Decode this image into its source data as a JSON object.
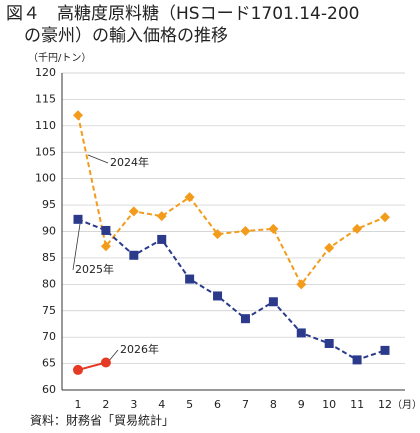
{
  "chart_data": {
    "type": "line",
    "title": [
      "図４　高糖度原料糖（HSコード1701.14-200",
      "の豪州）の輸入価格の推移"
    ],
    "y_unit": "（千円/トン）",
    "x_unit": "（月）",
    "source": "資料：財務省「貿易統計」",
    "categories": [
      "1",
      "2",
      "3",
      "4",
      "5",
      "6",
      "7",
      "8",
      "9",
      "10",
      "11",
      "12"
    ],
    "series": [
      {
        "name": "2024年",
        "color": "#f39c1c",
        "marker": "diamond",
        "dash": true,
        "values": [
          112,
          87.2,
          93.8,
          92.9,
          96.5,
          89.5,
          90.1,
          90.5,
          80,
          86.9,
          90.5,
          92.7
        ]
      },
      {
        "name": "2025年",
        "color": "#2c3a8c",
        "marker": "square",
        "dash": true,
        "values": [
          92.3,
          90.2,
          85.5,
          88.5,
          81,
          77.8,
          73.5,
          76.7,
          70.8,
          68.8,
          65.7,
          67.5
        ]
      },
      {
        "name": "2026年",
        "color": "#e53a24",
        "marker": "circle",
        "dash": false,
        "values": [
          63.8,
          65.2,
          null,
          null,
          null,
          null,
          null,
          null,
          null,
          null,
          null,
          null
        ]
      }
    ],
    "ylim": [
      60,
      120
    ],
    "yticks": [
      60,
      65,
      70,
      75,
      80,
      85,
      90,
      95,
      100,
      105,
      110,
      115,
      120
    ],
    "grid": true
  }
}
